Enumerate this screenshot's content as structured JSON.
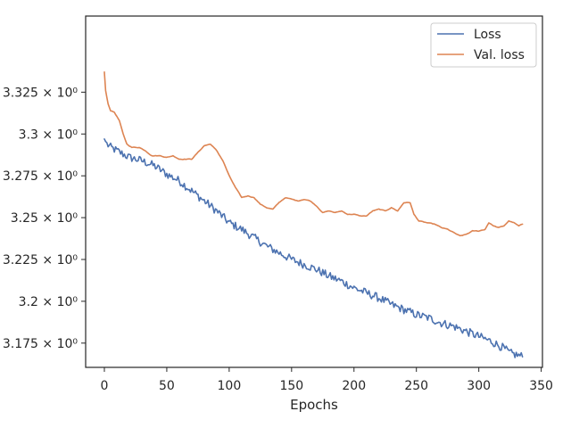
{
  "chart_data": {
    "type": "line",
    "xlabel": "Epochs",
    "ylabel": "",
    "title": "",
    "xlim": [
      -15,
      351
    ],
    "ylim": [
      3.1605,
      3.3705
    ],
    "xticks": [
      0,
      50,
      100,
      150,
      200,
      250,
      300,
      350
    ],
    "yticks": [
      3.175,
      3.2,
      3.225,
      3.25,
      3.275,
      3.3,
      3.325
    ],
    "ytick_labels": [
      "3.175 × 10⁰",
      "3.2 × 10⁰",
      "3.225 × 10⁰",
      "3.25 × 10⁰",
      "3.275 × 10⁰",
      "3.3 × 10⁰",
      "3.325 × 10⁰"
    ],
    "grid": false,
    "legend": "top-right",
    "series": [
      {
        "name": "Loss",
        "color": "#4c72b0",
        "noise": 0.0025,
        "points": [
          [
            0,
            3.297
          ],
          [
            2,
            3.294
          ],
          [
            5,
            3.292
          ],
          [
            10,
            3.29
          ],
          [
            20,
            3.286
          ],
          [
            30,
            3.284
          ],
          [
            40,
            3.281
          ],
          [
            50,
            3.276
          ],
          [
            60,
            3.272
          ],
          [
            70,
            3.266
          ],
          [
            80,
            3.26
          ],
          [
            90,
            3.254
          ],
          [
            100,
            3.247
          ],
          [
            110,
            3.243
          ],
          [
            120,
            3.238
          ],
          [
            130,
            3.233
          ],
          [
            140,
            3.229
          ],
          [
            150,
            3.225
          ],
          [
            160,
            3.222
          ],
          [
            170,
            3.219
          ],
          [
            180,
            3.215
          ],
          [
            190,
            3.212
          ],
          [
            200,
            3.208
          ],
          [
            210,
            3.205
          ],
          [
            220,
            3.202
          ],
          [
            230,
            3.198
          ],
          [
            240,
            3.195
          ],
          [
            250,
            3.192
          ],
          [
            260,
            3.19
          ],
          [
            270,
            3.187
          ],
          [
            280,
            3.185
          ],
          [
            290,
            3.182
          ],
          [
            300,
            3.179
          ],
          [
            310,
            3.176
          ],
          [
            320,
            3.172
          ],
          [
            325,
            3.169
          ],
          [
            330,
            3.168
          ],
          [
            335,
            3.167
          ]
        ]
      },
      {
        "name": "Val. loss",
        "color": "#dd8452",
        "noise": 0.0004,
        "points": [
          [
            0,
            3.337
          ],
          [
            1,
            3.326
          ],
          [
            3,
            3.318
          ],
          [
            5,
            3.314
          ],
          [
            8,
            3.313
          ],
          [
            12,
            3.308
          ],
          [
            15,
            3.3
          ],
          [
            18,
            3.294
          ],
          [
            22,
            3.292
          ],
          [
            28,
            3.292
          ],
          [
            33,
            3.29
          ],
          [
            38,
            3.287
          ],
          [
            45,
            3.287
          ],
          [
            50,
            3.286
          ],
          [
            55,
            3.287
          ],
          [
            60,
            3.285
          ],
          [
            65,
            3.285
          ],
          [
            70,
            3.285
          ],
          [
            75,
            3.289
          ],
          [
            80,
            3.293
          ],
          [
            85,
            3.294
          ],
          [
            90,
            3.29
          ],
          [
            95,
            3.284
          ],
          [
            100,
            3.275
          ],
          [
            105,
            3.268
          ],
          [
            110,
            3.262
          ],
          [
            115,
            3.263
          ],
          [
            120,
            3.262
          ],
          [
            125,
            3.258
          ],
          [
            130,
            3.256
          ],
          [
            135,
            3.255
          ],
          [
            140,
            3.259
          ],
          [
            145,
            3.262
          ],
          [
            150,
            3.261
          ],
          [
            155,
            3.26
          ],
          [
            160,
            3.261
          ],
          [
            165,
            3.26
          ],
          [
            170,
            3.257
          ],
          [
            175,
            3.253
          ],
          [
            180,
            3.254
          ],
          [
            185,
            3.253
          ],
          [
            190,
            3.254
          ],
          [
            195,
            3.252
          ],
          [
            200,
            3.252
          ],
          [
            205,
            3.251
          ],
          [
            210,
            3.251
          ],
          [
            215,
            3.254
          ],
          [
            220,
            3.255
          ],
          [
            225,
            3.254
          ],
          [
            230,
            3.256
          ],
          [
            235,
            3.254
          ],
          [
            240,
            3.259
          ],
          [
            245,
            3.259
          ],
          [
            248,
            3.252
          ],
          [
            252,
            3.248
          ],
          [
            258,
            3.247
          ],
          [
            265,
            3.246
          ],
          [
            270,
            3.244
          ],
          [
            275,
            3.243
          ],
          [
            280,
            3.241
          ],
          [
            285,
            3.239
          ],
          [
            290,
            3.24
          ],
          [
            295,
            3.242
          ],
          [
            300,
            3.242
          ],
          [
            305,
            3.243
          ],
          [
            308,
            3.247
          ],
          [
            312,
            3.245
          ],
          [
            316,
            3.244
          ],
          [
            320,
            3.245
          ],
          [
            324,
            3.248
          ],
          [
            328,
            3.247
          ],
          [
            332,
            3.245
          ],
          [
            335,
            3.246
          ]
        ]
      }
    ]
  }
}
